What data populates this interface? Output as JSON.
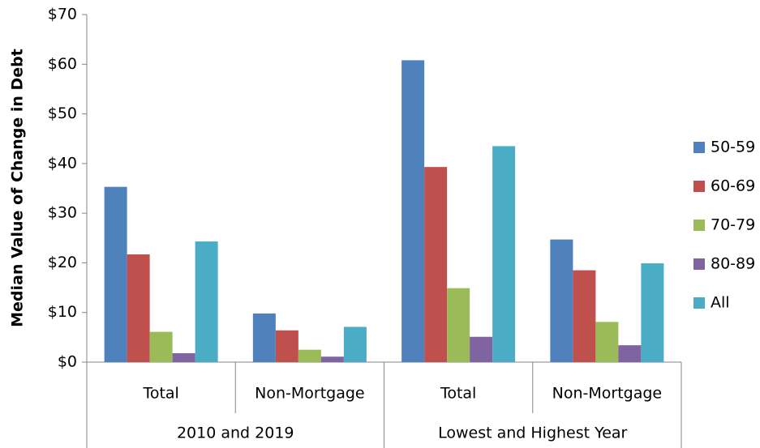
{
  "chart_data": {
    "type": "bar",
    "y_label": "Median Value of Change in Debt",
    "category_groups": [
      {
        "name": "2010 and 2019",
        "categories": [
          "Total",
          "Non-Mortgage"
        ]
      },
      {
        "name": "Lowest and Highest Year",
        "categories": [
          "Total",
          "Non-Mortgage"
        ]
      }
    ],
    "series": [
      {
        "name": "50-59",
        "color": "#4f81bd",
        "values": [
          35.3,
          9.8,
          60.8,
          24.7
        ]
      },
      {
        "name": "60-69",
        "color": "#c0504d",
        "values": [
          21.7,
          6.4,
          39.3,
          18.5
        ]
      },
      {
        "name": "70-79",
        "color": "#9bbb59",
        "values": [
          6.1,
          2.5,
          14.9,
          8.1
        ]
      },
      {
        "name": "80-89",
        "color": "#8064a2",
        "values": [
          1.8,
          1.1,
          5.1,
          3.4
        ]
      },
      {
        "name": "All",
        "color": "#4bacc6",
        "values": [
          24.3,
          7.1,
          43.5,
          19.9
        ]
      }
    ],
    "ylim": [
      0,
      70
    ],
    "yticks": [
      {
        "value": 0,
        "label": "$0"
      },
      {
        "value": 10,
        "label": "$10"
      },
      {
        "value": 20,
        "label": "$20"
      },
      {
        "value": 30,
        "label": "$30"
      },
      {
        "value": 40,
        "label": "$40"
      },
      {
        "value": 50,
        "label": "$50"
      },
      {
        "value": 60,
        "label": "$60"
      },
      {
        "value": 70,
        "label": "$70"
      }
    ],
    "grid": false,
    "legend": "right"
  }
}
